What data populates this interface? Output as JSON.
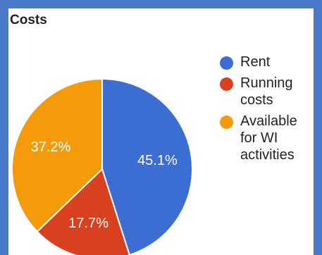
{
  "chart_data": {
    "type": "pie",
    "title": "Costs",
    "slices": [
      {
        "label": "Rent",
        "value": 45.1,
        "value_label": "45.1%",
        "color": "#3c6ed2"
      },
      {
        "label": "Running costs",
        "value": 17.7,
        "value_label": "17.7%",
        "color": "#d9401f"
      },
      {
        "label": "Available for WI activities",
        "value": 37.2,
        "value_label": "37.2%",
        "color": "#f59b0a"
      }
    ],
    "legend_position": "right"
  }
}
